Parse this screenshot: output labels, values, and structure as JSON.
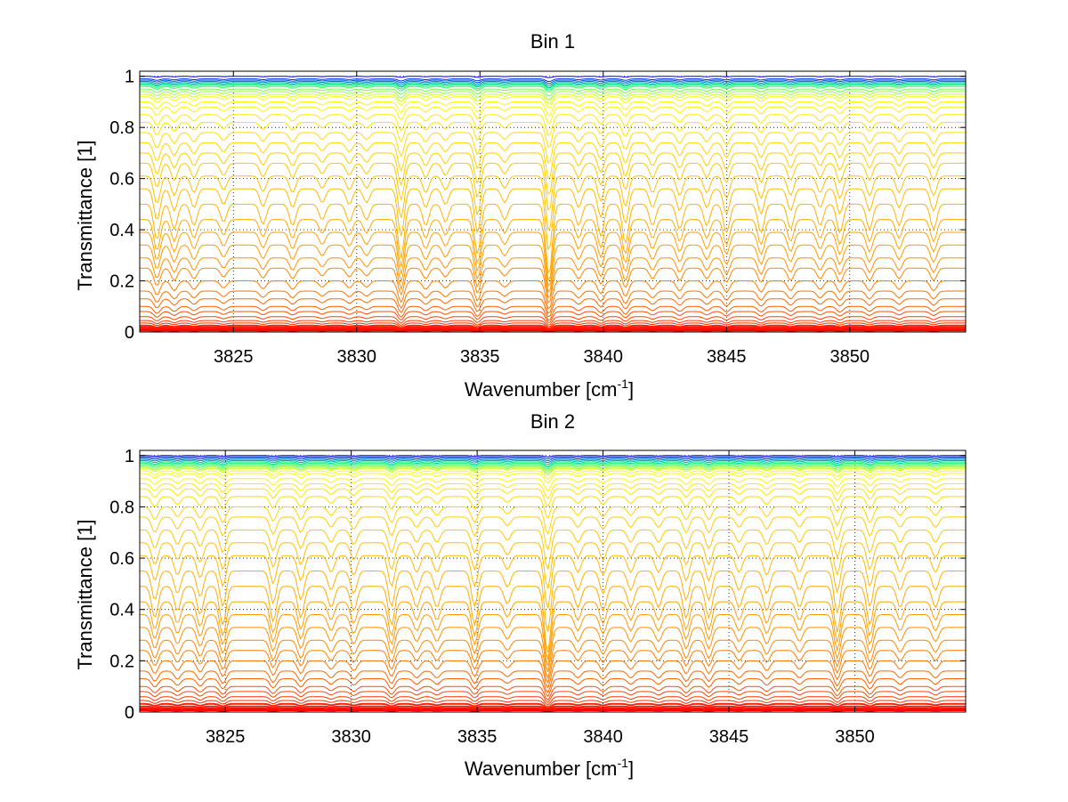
{
  "figure": {
    "background": "#ffffff"
  },
  "chart_data": [
    {
      "type": "line",
      "title": "Bin 1",
      "xlabel_main": "Wavenumber [cm",
      "xlabel_sup": "-1",
      "xlabel_close": "]",
      "ylabel": "Transmittance [1]",
      "xlim": [
        3821.2,
        3854.7
      ],
      "ylim": [
        0,
        1.02
      ],
      "xticks": [
        3825,
        3830,
        3835,
        3840,
        3845,
        3850
      ],
      "xtick_labels": [
        "3825",
        "3830",
        "3835",
        "3840",
        "3845",
        "3850"
      ],
      "yticks": [
        0,
        0.2,
        0.4,
        0.6,
        0.8,
        1
      ],
      "ytick_labels": [
        "0",
        "0.2",
        "0.4",
        "0.6",
        "0.8",
        "1"
      ],
      "grid": true,
      "grid_style": "dotted",
      "series_count": 40,
      "baseline_transmittance": [
        1.0,
        0.99,
        0.985,
        0.98,
        0.975,
        0.97,
        0.965,
        0.96,
        0.95,
        0.94,
        0.93,
        0.92,
        0.9,
        0.88,
        0.85,
        0.82,
        0.78,
        0.74,
        0.7,
        0.66,
        0.61,
        0.56,
        0.5,
        0.44,
        0.39,
        0.34,
        0.29,
        0.25,
        0.2,
        0.16,
        0.13,
        0.1,
        0.08,
        0.06,
        0.045,
        0.035,
        0.025,
        0.018,
        0.012,
        0.006
      ],
      "absorption_lines": [
        {
          "x": 3821.9,
          "depth": 0.5
        },
        {
          "x": 3822.6,
          "depth": 0.35
        },
        {
          "x": 3823.4,
          "depth": 0.3
        },
        {
          "x": 3824.6,
          "depth": 0.25
        },
        {
          "x": 3826.2,
          "depth": 0.28
        },
        {
          "x": 3827.4,
          "depth": 0.3
        },
        {
          "x": 3828.6,
          "depth": 0.22
        },
        {
          "x": 3829.7,
          "depth": 0.25
        },
        {
          "x": 3830.4,
          "depth": 0.22
        },
        {
          "x": 3831.8,
          "depth": 0.75
        },
        {
          "x": 3832.8,
          "depth": 0.3
        },
        {
          "x": 3833.6,
          "depth": 0.25
        },
        {
          "x": 3834.9,
          "depth": 0.7
        },
        {
          "x": 3836.0,
          "depth": 0.22
        },
        {
          "x": 3837.8,
          "depth": 1.0
        },
        {
          "x": 3839.0,
          "depth": 0.3
        },
        {
          "x": 3839.9,
          "depth": 0.45
        },
        {
          "x": 3840.9,
          "depth": 0.55
        },
        {
          "x": 3842.0,
          "depth": 0.3
        },
        {
          "x": 3843.1,
          "depth": 0.35
        },
        {
          "x": 3844.2,
          "depth": 0.3
        },
        {
          "x": 3845.0,
          "depth": 0.4
        },
        {
          "x": 3846.4,
          "depth": 0.4
        },
        {
          "x": 3847.6,
          "depth": 0.35
        },
        {
          "x": 3848.8,
          "depth": 0.3
        },
        {
          "x": 3849.6,
          "depth": 0.4
        },
        {
          "x": 3850.8,
          "depth": 0.35
        },
        {
          "x": 3852.0,
          "depth": 0.3
        },
        {
          "x": 3853.4,
          "depth": 0.35
        }
      ],
      "colormap": [
        "#ff0000",
        "#ff4000",
        "#ff8000",
        "#ffb000",
        "#ffd700",
        "#ffff00",
        "#00ff80",
        "#0000ff"
      ]
    },
    {
      "type": "line",
      "title": "Bin 2",
      "xlabel_main": "Wavenumber [cm",
      "xlabel_sup": "-1",
      "xlabel_close": "]",
      "ylabel": "Transmittance [1]",
      "xlim": [
        3821.6,
        3854.4
      ],
      "ylim": [
        0,
        1.02
      ],
      "xticks": [
        3825,
        3830,
        3835,
        3840,
        3845,
        3850
      ],
      "xtick_labels": [
        "3825",
        "3830",
        "3835",
        "3840",
        "3845",
        "3850"
      ],
      "yticks": [
        0,
        0.2,
        0.4,
        0.6,
        0.8,
        1
      ],
      "ytick_labels": [
        "0",
        "0.2",
        "0.4",
        "0.6",
        "0.8",
        "1"
      ],
      "grid": true,
      "grid_style": "dotted",
      "series_count": 40,
      "baseline_transmittance": [
        1.0,
        0.995,
        0.99,
        0.985,
        0.98,
        0.975,
        0.97,
        0.965,
        0.96,
        0.955,
        0.95,
        0.94,
        0.93,
        0.91,
        0.89,
        0.87,
        0.84,
        0.8,
        0.76,
        0.71,
        0.66,
        0.61,
        0.55,
        0.49,
        0.43,
        0.38,
        0.33,
        0.28,
        0.24,
        0.2,
        0.16,
        0.13,
        0.1,
        0.08,
        0.06,
        0.045,
        0.032,
        0.022,
        0.014,
        0.007
      ],
      "absorption_lines": [
        {
          "x": 3822.2,
          "depth": 0.45
        },
        {
          "x": 3823.1,
          "depth": 0.35
        },
        {
          "x": 3824.0,
          "depth": 0.4
        },
        {
          "x": 3824.9,
          "depth": 0.55
        },
        {
          "x": 3826.9,
          "depth": 0.5
        },
        {
          "x": 3828.0,
          "depth": 0.45
        },
        {
          "x": 3829.2,
          "depth": 0.3
        },
        {
          "x": 3830.1,
          "depth": 0.35
        },
        {
          "x": 3831.6,
          "depth": 0.55
        },
        {
          "x": 3832.6,
          "depth": 0.3
        },
        {
          "x": 3833.4,
          "depth": 0.3
        },
        {
          "x": 3834.9,
          "depth": 0.55
        },
        {
          "x": 3836.2,
          "depth": 0.25
        },
        {
          "x": 3837.8,
          "depth": 0.95
        },
        {
          "x": 3839.0,
          "depth": 0.3
        },
        {
          "x": 3840.0,
          "depth": 0.35
        },
        {
          "x": 3841.1,
          "depth": 0.3
        },
        {
          "x": 3842.2,
          "depth": 0.3
        },
        {
          "x": 3843.3,
          "depth": 0.45
        },
        {
          "x": 3844.2,
          "depth": 0.45
        },
        {
          "x": 3845.4,
          "depth": 0.3
        },
        {
          "x": 3846.5,
          "depth": 0.35
        },
        {
          "x": 3847.8,
          "depth": 0.3
        },
        {
          "x": 3849.3,
          "depth": 0.65
        },
        {
          "x": 3850.6,
          "depth": 0.55
        },
        {
          "x": 3851.8,
          "depth": 0.3
        },
        {
          "x": 3853.2,
          "depth": 0.3
        }
      ],
      "colormap": [
        "#ff0000",
        "#ff4000",
        "#ff8000",
        "#ffb000",
        "#ffd700",
        "#ffff00",
        "#00ff80",
        "#0000ff"
      ]
    }
  ]
}
